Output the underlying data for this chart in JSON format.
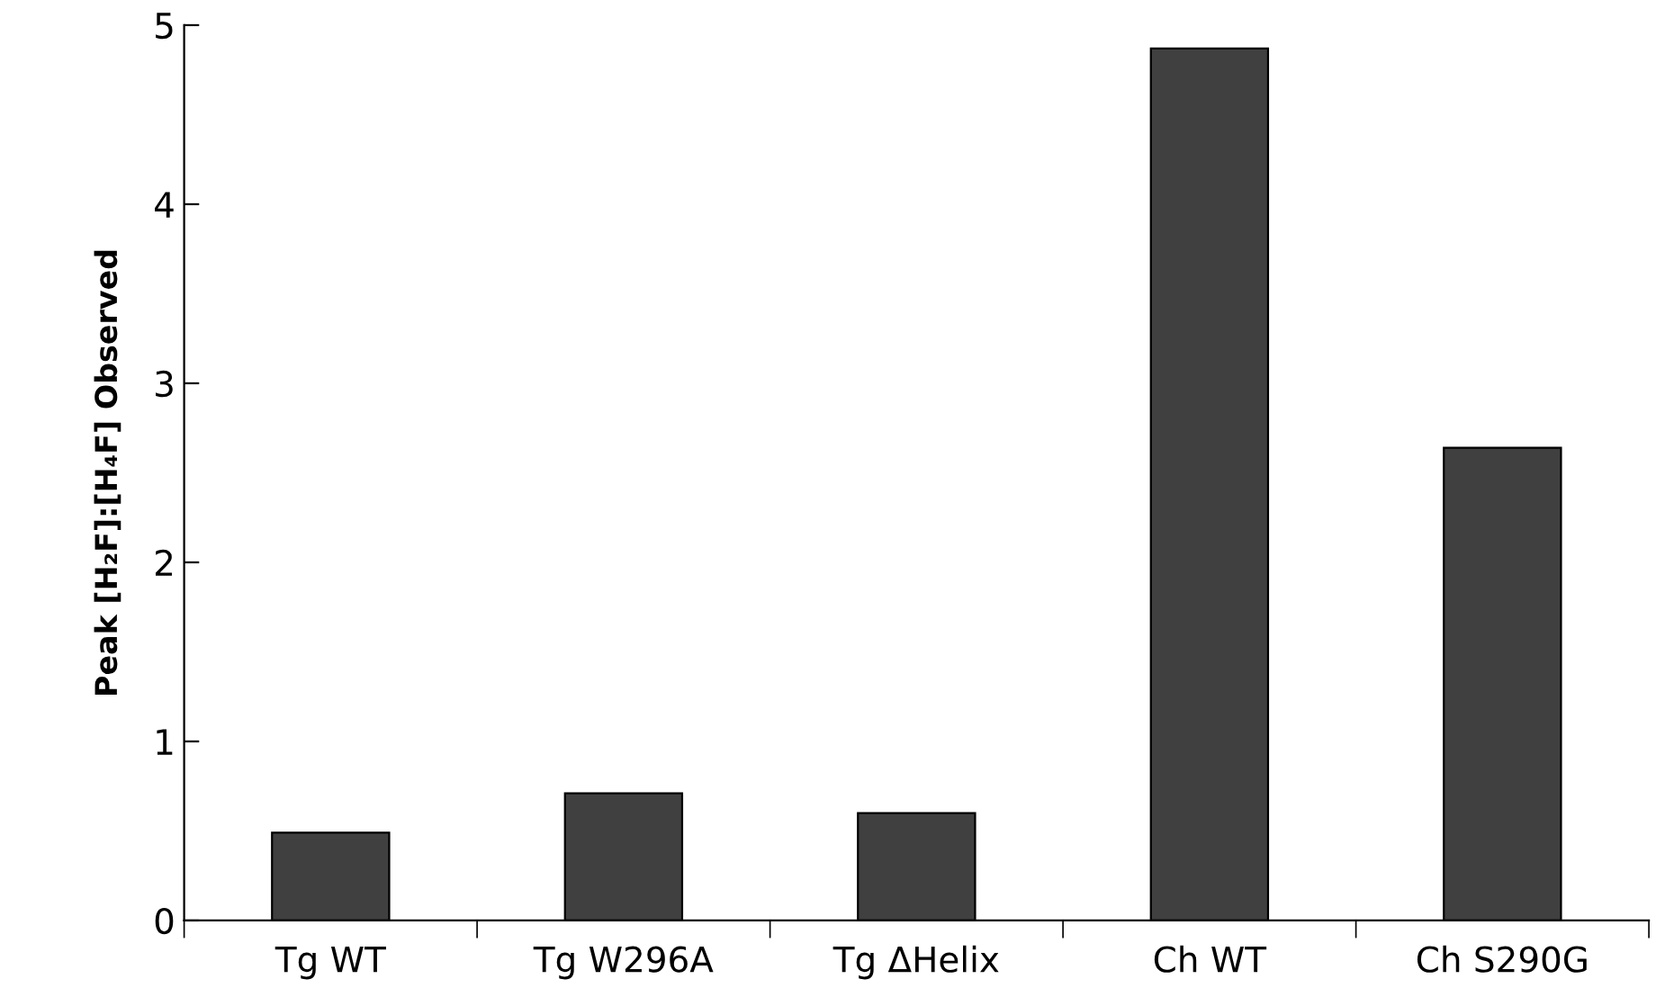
{
  "chart_data": {
    "type": "bar",
    "ylabel": "Peak [H₂F]:[H₄F] Observed",
    "categories": [
      "Tg WT",
      "Tg W296A",
      "Tg ΔHelix",
      "Ch WT",
      "Ch S290G"
    ],
    "values": [
      0.49,
      0.71,
      0.6,
      4.87,
      2.64
    ],
    "color": "#404040",
    "ylim": [
      0,
      5
    ],
    "yticks": [
      0,
      1,
      2,
      3,
      4,
      5
    ],
    "grid": false,
    "legend": false
  }
}
